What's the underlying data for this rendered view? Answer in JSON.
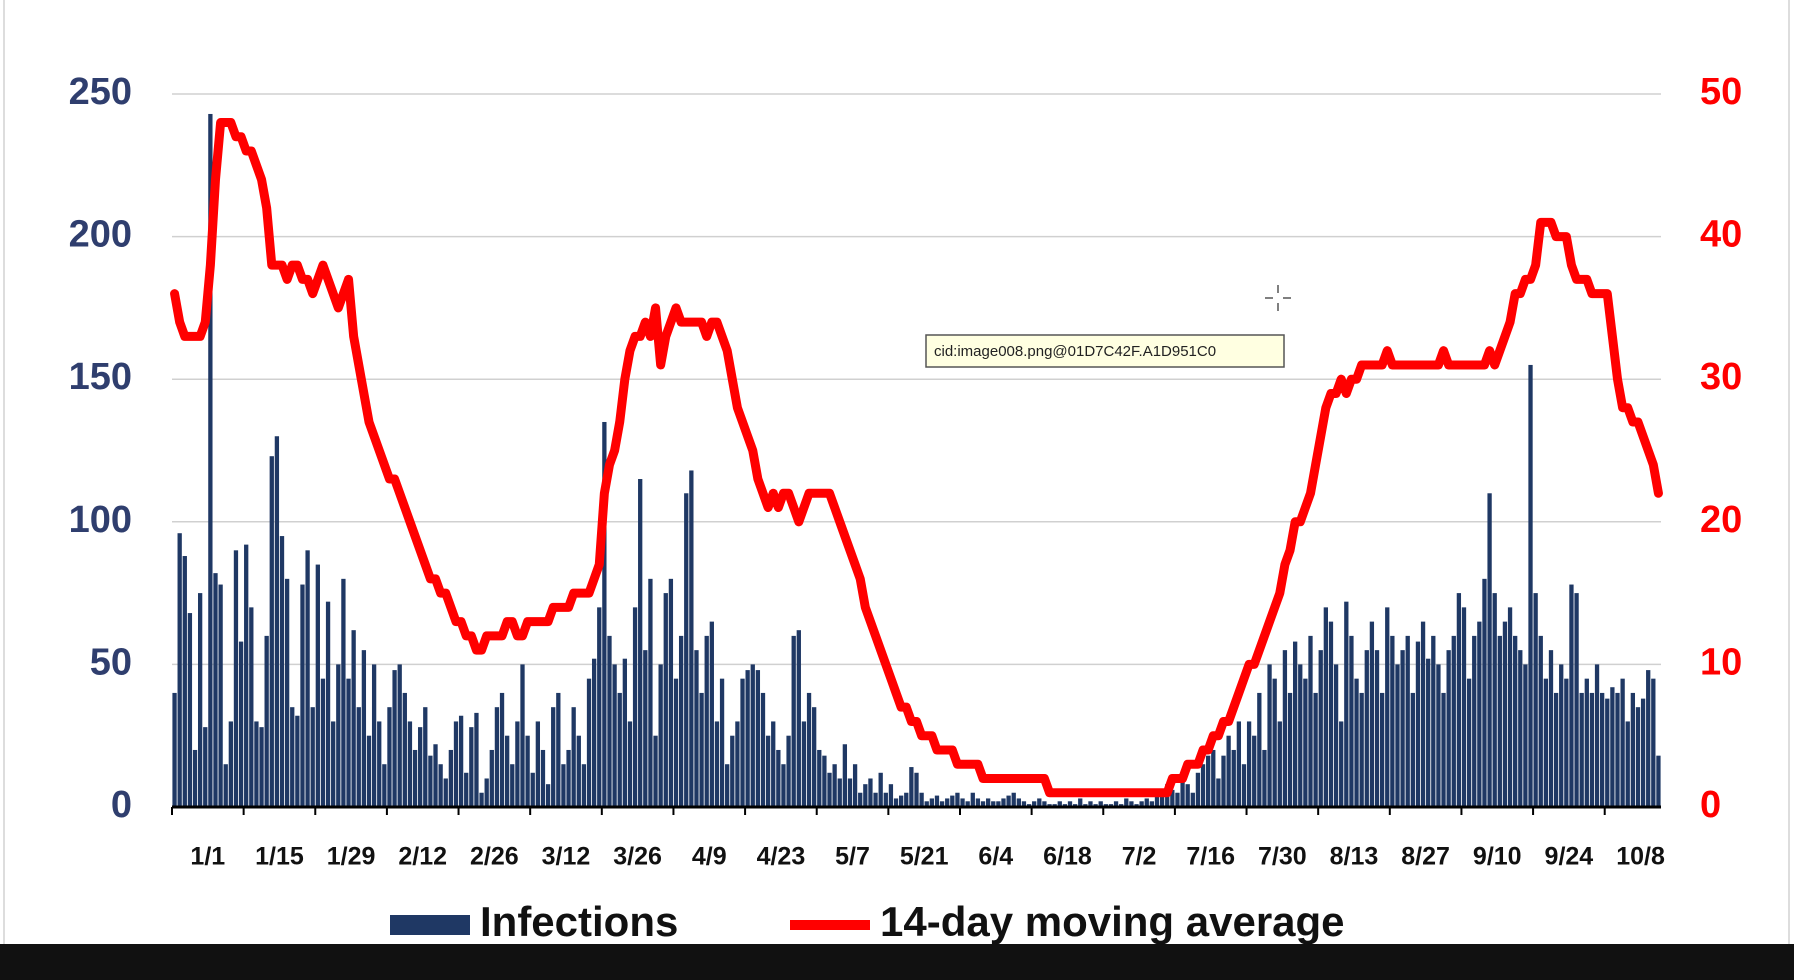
{
  "chart_data": {
    "type": "bar",
    "categories": [
      "1/1",
      null,
      null,
      null,
      null,
      null,
      null,
      null,
      null,
      null,
      null,
      null,
      null,
      null,
      "1/15",
      null,
      null,
      null,
      null,
      null,
      null,
      null,
      null,
      null,
      null,
      null,
      null,
      null,
      "1/29",
      null,
      null,
      null,
      null,
      null,
      null,
      null,
      null,
      null,
      null,
      null,
      null,
      null,
      "2/12",
      null,
      null,
      null,
      null,
      null,
      null,
      null,
      null,
      null,
      null,
      null,
      null,
      null,
      "2/26",
      null,
      null,
      null,
      null,
      null,
      null,
      null,
      null,
      null,
      null,
      null,
      null,
      null,
      "3/12",
      null,
      null,
      null,
      null,
      null,
      null,
      null,
      null,
      null,
      null,
      null,
      null,
      null,
      "3/26",
      null,
      null,
      null,
      null,
      null,
      null,
      null,
      null,
      null,
      null,
      null,
      null,
      null,
      "4/9",
      null,
      null,
      null,
      null,
      null,
      null,
      null,
      null,
      null,
      null,
      null,
      null,
      null,
      "4/23",
      null,
      null,
      null,
      null,
      null,
      null,
      null,
      null,
      null,
      null,
      null,
      null,
      null,
      "5/7",
      null,
      null,
      null,
      null,
      null,
      null,
      null,
      null,
      null,
      null,
      null,
      null,
      null,
      "5/21",
      null,
      null,
      null,
      null,
      null,
      null,
      null,
      null,
      null,
      null,
      null,
      null,
      null,
      "6/4",
      null,
      null,
      null,
      null,
      null,
      null,
      null,
      null,
      null,
      null,
      null,
      null,
      null,
      "6/18",
      null,
      null,
      null,
      null,
      null,
      null,
      null,
      null,
      null,
      null,
      null,
      null,
      null,
      "7/2",
      null,
      null,
      null,
      null,
      null,
      null,
      null,
      null,
      null,
      null,
      null,
      null,
      null,
      "7/16",
      null,
      null,
      null,
      null,
      null,
      null,
      null,
      null,
      null,
      null,
      null,
      null,
      null,
      "7/30",
      null,
      null,
      null,
      null,
      null,
      null,
      null,
      null,
      null,
      null,
      null,
      null,
      null,
      "8/13",
      null,
      null,
      null,
      null,
      null,
      null,
      null,
      null,
      null,
      null,
      null,
      null,
      null,
      "8/27",
      null,
      null,
      null,
      null,
      null,
      null,
      null,
      null,
      null,
      null,
      null,
      null,
      null,
      "9/10",
      null,
      null,
      null,
      null,
      null,
      null,
      null,
      null,
      null,
      null,
      null,
      null,
      null,
      "9/24",
      null,
      null,
      null,
      null,
      null,
      null,
      null,
      null,
      null,
      null,
      null,
      null,
      null,
      "10/8",
      null,
      null,
      null,
      null,
      null,
      null,
      null,
      null,
      null,
      null
    ],
    "series": [
      {
        "name": "Infections",
        "type": "bar",
        "color": "#1f3864",
        "values": [
          40,
          96,
          88,
          68,
          20,
          75,
          28,
          243,
          82,
          78,
          15,
          30,
          90,
          58,
          92,
          70,
          30,
          28,
          60,
          123,
          130,
          95,
          80,
          35,
          32,
          78,
          90,
          35,
          85,
          45,
          72,
          30,
          50,
          80,
          45,
          62,
          35,
          55,
          25,
          50,
          30,
          15,
          35,
          48,
          50,
          40,
          30,
          20,
          28,
          35,
          18,
          22,
          15,
          10,
          20,
          30,
          32,
          12,
          28,
          33,
          5,
          10,
          20,
          35,
          40,
          25,
          15,
          30,
          50,
          25,
          12,
          30,
          20,
          8,
          35,
          40,
          15,
          20,
          35,
          25,
          15,
          45,
          52,
          70,
          135,
          60,
          50,
          40,
          52,
          30,
          70,
          115,
          55,
          80,
          25,
          50,
          75,
          80,
          45,
          60,
          110,
          118,
          55,
          40,
          60,
          65,
          30,
          45,
          15,
          25,
          30,
          45,
          48,
          50,
          48,
          40,
          25,
          30,
          20,
          15,
          25,
          60,
          62,
          30,
          40,
          35,
          20,
          18,
          12,
          15,
          10,
          22,
          10,
          15,
          5,
          8,
          10,
          5,
          12,
          5,
          8,
          3,
          4,
          5,
          14,
          12,
          5,
          2,
          3,
          4,
          2,
          3,
          4,
          5,
          3,
          2,
          5,
          3,
          2,
          3,
          2,
          2,
          3,
          4,
          5,
          3,
          2,
          1,
          2,
          3,
          2,
          1,
          1,
          2,
          1,
          2,
          1,
          3,
          1,
          2,
          1,
          2,
          1,
          1,
          2,
          1,
          3,
          2,
          1,
          2,
          3,
          2,
          4,
          5,
          8,
          6,
          5,
          10,
          8,
          5,
          12,
          15,
          18,
          20,
          10,
          18,
          25,
          20,
          30,
          15,
          30,
          25,
          40,
          20,
          50,
          45,
          30,
          55,
          40,
          58,
          50,
          45,
          60,
          40,
          55,
          70,
          65,
          50,
          30,
          72,
          60,
          45,
          40,
          55,
          65,
          55,
          40,
          70,
          60,
          50,
          55,
          60,
          40,
          58,
          65,
          52,
          60,
          50,
          40,
          55,
          60,
          75,
          70,
          45,
          60,
          65,
          80,
          110,
          75,
          60,
          65,
          70,
          60,
          55,
          50,
          155,
          75,
          60,
          45,
          55,
          40,
          50,
          45,
          78,
          75,
          40,
          45,
          40,
          50,
          40,
          38,
          42,
          40,
          45,
          30,
          40,
          35,
          38,
          48,
          45,
          18
        ]
      },
      {
        "name": "14-day moving average",
        "type": "line",
        "axis": "y2",
        "color": "#ff0000",
        "values": [
          36,
          34,
          33,
          33,
          33,
          33,
          34,
          38,
          44,
          48,
          48,
          48,
          47,
          47,
          46,
          46,
          45,
          44,
          42,
          38,
          38,
          38,
          37,
          38,
          38,
          37,
          37,
          36,
          37,
          38,
          37,
          36,
          35,
          36,
          37,
          33,
          31,
          29,
          27,
          26,
          25,
          24,
          23,
          23,
          22,
          21,
          20,
          19,
          18,
          17,
          16,
          16,
          15,
          15,
          14,
          13,
          13,
          12,
          12,
          11,
          11,
          12,
          12,
          12,
          12,
          13,
          13,
          12,
          12,
          13,
          13,
          13,
          13,
          13,
          14,
          14,
          14,
          14,
          15,
          15,
          15,
          15,
          16,
          17,
          22,
          24,
          25,
          27,
          30,
          32,
          33,
          33,
          34,
          33,
          35,
          31,
          33,
          34,
          35,
          34,
          34,
          34,
          34,
          34,
          33,
          34,
          34,
          33,
          32,
          30,
          28,
          27,
          26,
          25,
          23,
          22,
          21,
          22,
          21,
          22,
          22,
          21,
          20,
          21,
          22,
          22,
          22,
          22,
          22,
          21,
          20,
          19,
          18,
          17,
          16,
          14,
          13,
          12,
          11,
          10,
          9,
          8,
          7,
          7,
          6,
          6,
          5,
          5,
          5,
          4,
          4,
          4,
          4,
          3,
          3,
          3,
          3,
          3,
          2,
          2,
          2,
          2,
          2,
          2,
          2,
          2,
          2,
          2,
          2,
          2,
          2,
          1,
          1,
          1,
          1,
          1,
          1,
          1,
          1,
          1,
          1,
          1,
          1,
          1,
          1,
          1,
          1,
          1,
          1,
          1,
          1,
          1,
          1,
          1,
          1,
          2,
          2,
          2,
          3,
          3,
          3,
          4,
          4,
          5,
          5,
          6,
          6,
          7,
          8,
          9,
          10,
          10,
          11,
          12,
          13,
          14,
          15,
          17,
          18,
          20,
          20,
          21,
          22,
          24,
          26,
          28,
          29,
          29,
          30,
          29,
          30,
          30,
          31,
          31,
          31,
          31,
          31,
          32,
          31,
          31,
          31,
          31,
          31,
          31,
          31,
          31,
          31,
          31,
          32,
          31,
          31,
          31,
          31,
          31,
          31,
          31,
          31,
          32,
          31,
          32,
          33,
          34,
          36,
          36,
          37,
          37,
          38,
          41,
          41,
          41,
          40,
          40,
          40,
          38,
          37,
          37,
          37,
          36,
          36,
          36,
          36,
          33,
          30,
          28,
          28,
          27,
          27,
          26,
          25,
          24,
          22
        ]
      }
    ],
    "ylim": [
      0,
      250
    ],
    "yticks": [
      0,
      50,
      100,
      150,
      200,
      250
    ],
    "y2lim": [
      0,
      50
    ],
    "y2ticks": [
      0,
      10,
      20,
      30,
      40,
      50
    ],
    "grid": true,
    "legend": "bottom",
    "tooltip": "cid:image008.png@01D7C42F.A1D951C0"
  }
}
